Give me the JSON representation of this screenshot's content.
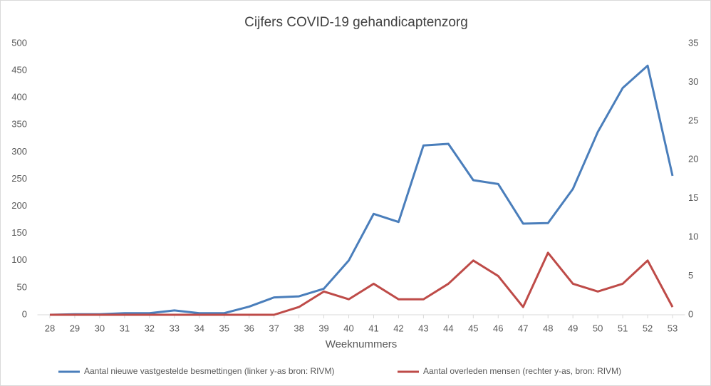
{
  "chart_data": {
    "type": "line",
    "title": "Cijfers COVID-19 gehandicaptenzorg",
    "x_label": "Weeknummers",
    "categories": [
      "28",
      "29",
      "30",
      "31",
      "32",
      "33",
      "34",
      "35",
      "36",
      "37",
      "38",
      "39",
      "40",
      "41",
      "42",
      "43",
      "44",
      "45",
      "46",
      "47",
      "48",
      "49",
      "50",
      "51",
      "52",
      "53"
    ],
    "series": [
      {
        "name": "Aantal nieuwe vastgestelde besmettingen  (linker y-as bron: RIVM)",
        "color": "#4a7ebb",
        "values": [
          0,
          1,
          1,
          3,
          3,
          8,
          3,
          3,
          15,
          32,
          34,
          48,
          100,
          186,
          171,
          312,
          315,
          248,
          241,
          168,
          169,
          232,
          337,
          418,
          459,
          256
        ]
      },
      {
        "name": "Aantal overleden mensen  (rechter y-as, bron: RIVM)",
        "color": "#be4b48",
        "axis": "y2",
        "values": [
          0,
          0,
          0,
          0,
          0,
          0,
          0,
          0,
          0,
          0,
          1,
          3,
          2,
          4,
          2,
          2,
          4,
          7,
          5,
          1,
          8,
          4,
          3,
          4,
          7,
          1
        ]
      }
    ],
    "ylim": [
      0,
      500
    ],
    "yticks": [
      0,
      50,
      100,
      150,
      200,
      250,
      300,
      350,
      400,
      450,
      500
    ],
    "y2lim": [
      0,
      35
    ],
    "y2ticks": [
      0,
      5,
      10,
      15,
      20,
      25,
      30,
      35
    ],
    "legend": "bottom"
  }
}
